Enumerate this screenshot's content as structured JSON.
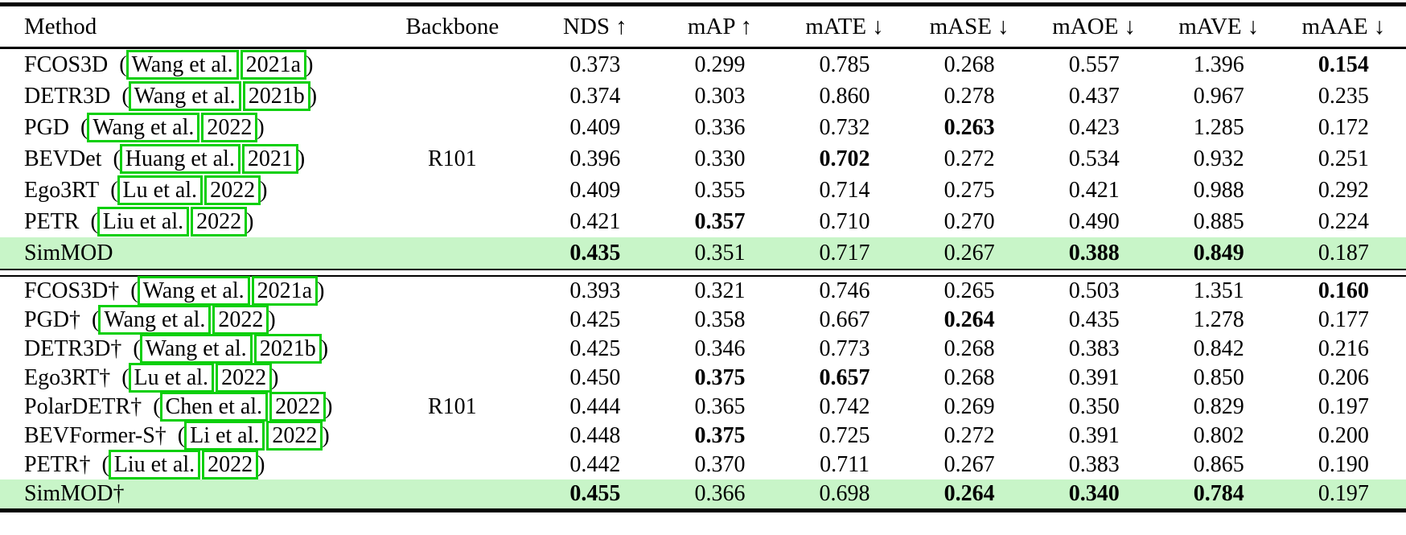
{
  "colors": {
    "highlight_row": "#c8f5c8",
    "link_box_green": "#0ccf0c"
  },
  "header": {
    "columns": [
      "Method",
      "Backbone",
      "NDS ↑",
      "mAP ↑",
      "mATE ↓",
      "mASE ↓",
      "mAOE ↓",
      "mAVE ↓",
      "mAAE ↓"
    ]
  },
  "groups": [
    {
      "backbone": "R101",
      "backbone_row": 3,
      "rows": [
        {
          "method": "FCOS3D",
          "cite_author": "Wang et al.",
          "cite_year": "2021a",
          "values": [
            "0.373",
            "0.299",
            "0.785",
            "0.268",
            "0.557",
            "1.396",
            "0.154"
          ],
          "bold": [
            6
          ],
          "highlight": false
        },
        {
          "method": "DETR3D",
          "cite_author": "Wang et al.",
          "cite_year": "2021b",
          "values": [
            "0.374",
            "0.303",
            "0.860",
            "0.278",
            "0.437",
            "0.967",
            "0.235"
          ],
          "bold": [],
          "highlight": false
        },
        {
          "method": "PGD",
          "cite_author": "Wang et al.",
          "cite_year": "2022",
          "values": [
            "0.409",
            "0.336",
            "0.732",
            "0.263",
            "0.423",
            "1.285",
            "0.172"
          ],
          "bold": [
            3
          ],
          "highlight": false
        },
        {
          "method": "BEVDet",
          "cite_author": "Huang et al.",
          "cite_year": "2021",
          "values": [
            "0.396",
            "0.330",
            "0.702",
            "0.272",
            "0.534",
            "0.932",
            "0.251"
          ],
          "bold": [
            2
          ],
          "highlight": false
        },
        {
          "method": "Ego3RT",
          "cite_author": "Lu et al.",
          "cite_year": "2022",
          "values": [
            "0.409",
            "0.355",
            "0.714",
            "0.275",
            "0.421",
            "0.988",
            "0.292"
          ],
          "bold": [],
          "highlight": false
        },
        {
          "method": "PETR",
          "cite_author": "Liu et al.",
          "cite_year": "2022",
          "values": [
            "0.421",
            "0.357",
            "0.710",
            "0.270",
            "0.490",
            "0.885",
            "0.224"
          ],
          "bold": [
            1
          ],
          "highlight": false
        },
        {
          "method": "SimMOD",
          "cite_author": null,
          "cite_year": null,
          "values": [
            "0.435",
            "0.351",
            "0.717",
            "0.267",
            "0.388",
            "0.849",
            "0.187"
          ],
          "bold": [
            0,
            4,
            5
          ],
          "highlight": true
        }
      ]
    },
    {
      "backbone": "R101",
      "backbone_row": 4,
      "rows": [
        {
          "method": "FCOS3D†",
          "cite_author": "Wang et al.",
          "cite_year": "2021a",
          "values": [
            "0.393",
            "0.321",
            "0.746",
            "0.265",
            "0.503",
            "1.351",
            "0.160"
          ],
          "bold": [
            6
          ],
          "highlight": false
        },
        {
          "method": "PGD†",
          "cite_author": "Wang et al.",
          "cite_year": "2022",
          "values": [
            "0.425",
            "0.358",
            "0.667",
            "0.264",
            "0.435",
            "1.278",
            "0.177"
          ],
          "bold": [
            3
          ],
          "highlight": false
        },
        {
          "method": "DETR3D†",
          "cite_author": "Wang et al.",
          "cite_year": "2021b",
          "values": [
            "0.425",
            "0.346",
            "0.773",
            "0.268",
            "0.383",
            "0.842",
            "0.216"
          ],
          "bold": [],
          "highlight": false
        },
        {
          "method": "Ego3RT†",
          "cite_author": "Lu et al.",
          "cite_year": "2022",
          "values": [
            "0.450",
            "0.375",
            "0.657",
            "0.268",
            "0.391",
            "0.850",
            "0.206"
          ],
          "bold": [
            1,
            2
          ],
          "highlight": false
        },
        {
          "method": "PolarDETR†",
          "cite_author": "Chen et al.",
          "cite_year": "2022",
          "values": [
            "0.444",
            "0.365",
            "0.742",
            "0.269",
            "0.350",
            "0.829",
            "0.197"
          ],
          "bold": [],
          "highlight": false
        },
        {
          "method": "BEVFormer-S†",
          "cite_author": "Li et al.",
          "cite_year": "2022",
          "values": [
            "0.448",
            "0.375",
            "0.725",
            "0.272",
            "0.391",
            "0.802",
            "0.200"
          ],
          "bold": [
            1
          ],
          "highlight": false
        },
        {
          "method": "PETR†",
          "cite_author": "Liu et al.",
          "cite_year": "2022",
          "values": [
            "0.442",
            "0.370",
            "0.711",
            "0.267",
            "0.383",
            "0.865",
            "0.190"
          ],
          "bold": [],
          "highlight": false
        },
        {
          "method": "SimMOD†",
          "cite_author": null,
          "cite_year": null,
          "values": [
            "0.455",
            "0.366",
            "0.698",
            "0.264",
            "0.340",
            "0.784",
            "0.197"
          ],
          "bold": [
            0,
            3,
            4,
            5
          ],
          "highlight": true
        }
      ]
    }
  ]
}
